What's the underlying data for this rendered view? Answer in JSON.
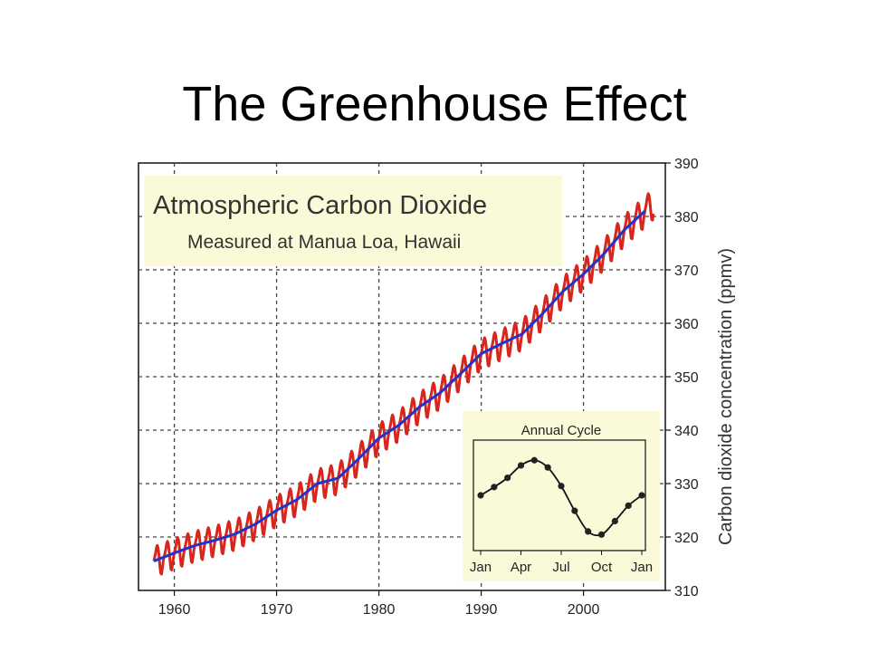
{
  "slide": {
    "title": "The Greenhouse Effect"
  },
  "colors": {
    "seasonal": "#d9261c",
    "trend": "#2233c8",
    "panel": "#fbfad8",
    "grid": "#444444",
    "marker": "#222222"
  },
  "chart_data": [
    {
      "type": "line",
      "title": "Atmospheric Carbon Dioxide",
      "subtitle": "Measured at Manua Loa, Hawaii",
      "xlabel": "",
      "ylabel": "Carbon dioxide concentration (ppmv)",
      "xlim": [
        1956.5,
        2008
      ],
      "ylim": [
        310,
        390
      ],
      "xticks": [
        "1960",
        "1970",
        "1980",
        "1990",
        "2000"
      ],
      "yticks": [
        "310",
        "320",
        "330",
        "340",
        "350",
        "360",
        "370",
        "380",
        "390"
      ],
      "grid": true,
      "series": [
        {
          "x": [
            1958,
            1960,
            1962,
            1964,
            1966,
            1968,
            1970,
            1972,
            1974,
            1976,
            1978,
            1980,
            1982,
            1984,
            1986,
            1988,
            1990,
            1992,
            1994,
            1996,
            1998,
            2000,
            2002,
            2004,
            2006
          ],
          "values": [
            315.5,
            317.0,
            318.4,
            319.4,
            320.6,
            322.5,
            325.0,
            327.0,
            330.0,
            331.0,
            334.6,
            338.5,
            341.0,
            344.4,
            347.0,
            350.6,
            354.3,
            356.2,
            358.0,
            361.8,
            366.0,
            369.2,
            373.0,
            377.5,
            381.0
          ]
        }
      ],
      "seasonal_amplitude": 3
    },
    {
      "type": "line",
      "title": "Annual Cycle",
      "categories": [
        "Jan",
        "Feb",
        "Mar",
        "Apr",
        "May",
        "Jun",
        "Jul",
        "Aug",
        "Sep",
        "Oct",
        "Nov",
        "Dec",
        "Jan"
      ],
      "xticks": [
        "Jan",
        "Apr",
        "Jul",
        "Oct",
        "Jan"
      ],
      "values": [
        0.0,
        0.8,
        1.7,
        2.9,
        3.4,
        2.7,
        0.9,
        -1.5,
        -3.5,
        -3.8,
        -2.5,
        -1.0,
        0.0
      ],
      "ylim": [
        -5,
        5
      ],
      "grid": false
    }
  ]
}
